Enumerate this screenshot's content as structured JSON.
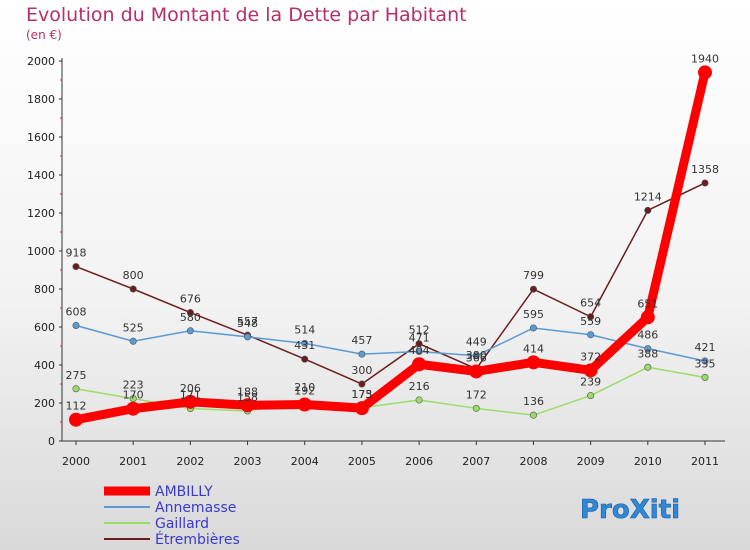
{
  "chart_data": {
    "type": "line",
    "title": "Evolution du Montant de la Dette par Habitant",
    "subtitle": "(en €)",
    "xlabel": "",
    "ylabel": "",
    "x": [
      "2000",
      "2001",
      "2002",
      "2003",
      "2004",
      "2005",
      "2006",
      "2007",
      "2008",
      "2009",
      "2010",
      "2011"
    ],
    "ylim": [
      0,
      2000
    ],
    "yticks": [
      0,
      200,
      400,
      600,
      800,
      1000,
      1200,
      1400,
      1600,
      1800,
      2000
    ],
    "grid": false,
    "legend_position": "bottom-left",
    "series": [
      {
        "name": "Étrembières",
        "color": "#6b1d1d",
        "values": [
          918,
          800,
          676,
          557,
          431,
          300,
          512,
          380,
          799,
          654,
          1214,
          1358
        ]
      },
      {
        "name": "Annemasse",
        "color": "#5b9bd5",
        "values": [
          608,
          525,
          580,
          548,
          514,
          457,
          471,
          449,
          595,
          559,
          486,
          421
        ]
      },
      {
        "name": "Gaillard",
        "color": "#99dd66",
        "values": [
          275,
          223,
          171,
          158,
          210,
          175,
          216,
          172,
          136,
          239,
          388,
          335
        ]
      },
      {
        "name": "AMBILLY",
        "color": "#ff0000",
        "values": [
          112,
          170,
          206,
          188,
          192,
          173,
          404,
          366,
          414,
          372,
          651,
          1940
        ]
      }
    ]
  },
  "legend_order": [
    "AMBILLY",
    "Annemasse",
    "Gaillard",
    "Étrembières"
  ],
  "logo": {
    "text": "ProXiti"
  }
}
